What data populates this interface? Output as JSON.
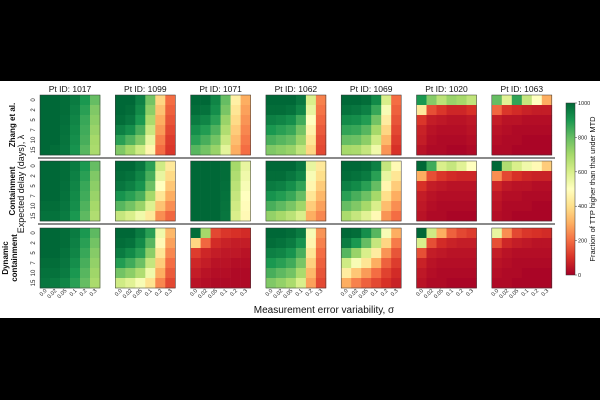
{
  "chart_data": {
    "type": "heatmap",
    "xlabel": "Measurement error variability, σ",
    "ylabel": "Expected delay (days), λ",
    "x_ticks": [
      "0.0",
      "0.02",
      "0.05",
      "0.1",
      "0.2",
      "0.3"
    ],
    "y_ticks": [
      "0",
      "2",
      "5",
      "7",
      "10",
      "15"
    ],
    "colorbar": {
      "label": "Fraction of TTP higher than that under MTD",
      "ticks": [
        "0",
        "200",
        "400",
        "600",
        "800",
        "1000"
      ],
      "range": [
        0,
        1000
      ],
      "stops": [
        "#a50026",
        "#d73027",
        "#f46d43",
        "#fdae61",
        "#fee08b",
        "#ffffbf",
        "#d9ef8b",
        "#a6d96a",
        "#66bd63",
        "#1a9850",
        "#006837"
      ]
    },
    "columns": [
      "Pt ID: 1017",
      "Pt ID: 1099",
      "Pt ID: 1071",
      "Pt ID: 1062",
      "Pt ID: 1069",
      "Pt ID: 1020",
      "Pt ID: 1063"
    ],
    "rows": [
      {
        "label_lines": [
          "Zhang et al."
        ]
      },
      {
        "label_lines": [
          "Containment"
        ]
      },
      {
        "label_lines": [
          "Dynamic",
          "containment"
        ]
      }
    ],
    "grids": [
      [
        [
          [
            1000,
            1000,
            990,
            960,
            900,
            800
          ],
          [
            1000,
            1000,
            990,
            950,
            880,
            760
          ],
          [
            1000,
            1000,
            985,
            940,
            860,
            740
          ],
          [
            1000,
            1000,
            980,
            930,
            850,
            720
          ],
          [
            1000,
            1000,
            975,
            920,
            840,
            700
          ],
          [
            1000,
            990,
            970,
            910,
            820,
            690
          ]
        ],
        [
          [
            1000,
            1000,
            950,
            780,
            380,
            200
          ],
          [
            1000,
            990,
            930,
            740,
            340,
            180
          ],
          [
            990,
            970,
            900,
            690,
            300,
            160
          ],
          [
            950,
            920,
            840,
            630,
            270,
            140
          ],
          [
            880,
            830,
            760,
            560,
            230,
            120
          ],
          [
            760,
            700,
            620,
            470,
            200,
            110
          ]
        ],
        [
          [
            1000,
            1000,
            940,
            800,
            450,
            300
          ],
          [
            990,
            980,
            920,
            770,
            420,
            280
          ],
          [
            960,
            940,
            880,
            720,
            390,
            260
          ],
          [
            920,
            890,
            830,
            680,
            360,
            240
          ],
          [
            880,
            840,
            780,
            630,
            330,
            220
          ],
          [
            820,
            780,
            720,
            570,
            300,
            200
          ]
        ],
        [
          [
            1000,
            1000,
            1000,
            970,
            600,
            230
          ],
          [
            990,
            990,
            980,
            940,
            560,
            210
          ],
          [
            950,
            940,
            920,
            850,
            500,
            190
          ],
          [
            900,
            880,
            860,
            780,
            460,
            170
          ],
          [
            840,
            820,
            800,
            720,
            420,
            150
          ],
          [
            760,
            740,
            720,
            650,
            380,
            140
          ]
        ],
        [
          [
            1000,
            1000,
            990,
            930,
            600,
            200
          ],
          [
            980,
            970,
            950,
            860,
            520,
            180
          ],
          [
            930,
            920,
            890,
            780,
            440,
            160
          ],
          [
            870,
            860,
            820,
            700,
            380,
            140
          ],
          [
            800,
            790,
            740,
            620,
            320,
            120
          ],
          [
            700,
            690,
            640,
            540,
            260,
            100
          ]
        ],
        [
          [
            900,
            750,
            660,
            720,
            700,
            650
          ],
          [
            430,
            150,
            110,
            80,
            80,
            100
          ],
          [
            110,
            60,
            50,
            40,
            40,
            50
          ],
          [
            70,
            40,
            30,
            30,
            30,
            40
          ],
          [
            60,
            30,
            20,
            20,
            20,
            30
          ],
          [
            40,
            20,
            20,
            10,
            10,
            20
          ]
        ],
        [
          [
            800,
            580,
            870,
            640,
            500,
            300
          ],
          [
            190,
            110,
            90,
            70,
            60,
            60
          ],
          [
            60,
            40,
            40,
            30,
            30,
            30
          ],
          [
            40,
            30,
            20,
            20,
            20,
            20
          ],
          [
            30,
            20,
            20,
            10,
            10,
            10
          ],
          [
            20,
            20,
            10,
            10,
            10,
            10
          ]
        ]
      ],
      [
        [
          [
            1000,
            1000,
            990,
            960,
            900,
            800
          ],
          [
            1000,
            1000,
            990,
            950,
            880,
            760
          ],
          [
            1000,
            1000,
            985,
            940,
            860,
            740
          ],
          [
            1000,
            1000,
            980,
            930,
            850,
            720
          ],
          [
            990,
            990,
            970,
            920,
            830,
            700
          ],
          [
            980,
            980,
            960,
            900,
            810,
            680
          ]
        ],
        [
          [
            1000,
            1000,
            970,
            880,
            620,
            430
          ],
          [
            990,
            980,
            940,
            840,
            560,
            390
          ],
          [
            970,
            950,
            910,
            790,
            500,
            350
          ],
          [
            910,
            880,
            840,
            700,
            420,
            300
          ],
          [
            820,
            780,
            720,
            590,
            340,
            250
          ],
          [
            640,
            600,
            540,
            430,
            250,
            190
          ]
        ],
        [
          [
            1000,
            1000,
            1000,
            990,
            700,
            560
          ],
          [
            1000,
            1000,
            1000,
            990,
            680,
            540
          ],
          [
            1000,
            1000,
            1000,
            985,
            660,
            520
          ],
          [
            1000,
            1000,
            1000,
            980,
            640,
            500
          ],
          [
            1000,
            1000,
            1000,
            975,
            620,
            490
          ],
          [
            1000,
            1000,
            1000,
            970,
            600,
            480
          ]
        ],
        [
          [
            1000,
            1000,
            1000,
            970,
            560,
            430
          ],
          [
            990,
            990,
            970,
            940,
            520,
            400
          ],
          [
            960,
            950,
            920,
            870,
            470,
            360
          ],
          [
            910,
            890,
            860,
            800,
            420,
            320
          ],
          [
            840,
            810,
            770,
            710,
            360,
            280
          ],
          [
            730,
            700,
            660,
            600,
            300,
            240
          ]
        ],
        [
          [
            1000,
            1000,
            990,
            950,
            640,
            480
          ],
          [
            990,
            980,
            960,
            880,
            560,
            420
          ],
          [
            950,
            930,
            880,
            800,
            470,
            360
          ],
          [
            880,
            840,
            790,
            700,
            400,
            300
          ],
          [
            800,
            760,
            700,
            600,
            330,
            250
          ],
          [
            690,
            640,
            580,
            480,
            260,
            200
          ]
        ],
        [
          [
            1000,
            850,
            600,
            640,
            580,
            500
          ],
          [
            300,
            150,
            110,
            90,
            80,
            80
          ],
          [
            100,
            60,
            50,
            40,
            40,
            40
          ],
          [
            60,
            40,
            30,
            30,
            30,
            30
          ],
          [
            50,
            30,
            20,
            20,
            20,
            20
          ],
          [
            40,
            20,
            20,
            10,
            10,
            10
          ]
        ],
        [
          [
            1000,
            680,
            600,
            540,
            480,
            360
          ],
          [
            250,
            140,
            100,
            80,
            70,
            70
          ],
          [
            80,
            50,
            40,
            40,
            30,
            30
          ],
          [
            50,
            30,
            30,
            20,
            20,
            20
          ],
          [
            40,
            20,
            20,
            20,
            10,
            10
          ],
          [
            30,
            20,
            10,
            10,
            10,
            10
          ]
        ]
      ],
      [
        [
          [
            1000,
            1000,
            990,
            960,
            900,
            810
          ],
          [
            1000,
            1000,
            990,
            950,
            880,
            780
          ],
          [
            1000,
            1000,
            980,
            940,
            860,
            750
          ],
          [
            990,
            990,
            970,
            920,
            840,
            730
          ],
          [
            980,
            980,
            960,
            900,
            820,
            710
          ],
          [
            970,
            960,
            940,
            880,
            800,
            690
          ]
        ],
        [
          [
            1000,
            1000,
            960,
            880,
            540,
            320
          ],
          [
            990,
            980,
            930,
            820,
            480,
            280
          ],
          [
            960,
            930,
            880,
            740,
            420,
            240
          ],
          [
            890,
            850,
            790,
            640,
            360,
            200
          ],
          [
            780,
            740,
            680,
            540,
            300,
            170
          ],
          [
            620,
            580,
            520,
            410,
            240,
            140
          ]
        ],
        [
          [
            990,
            700,
            140,
            110,
            100,
            90
          ],
          [
            380,
            190,
            90,
            70,
            60,
            60
          ],
          [
            120,
            80,
            60,
            50,
            50,
            40
          ],
          [
            80,
            60,
            40,
            40,
            30,
            30
          ],
          [
            60,
            40,
            30,
            30,
            20,
            20
          ],
          [
            40,
            30,
            20,
            20,
            20,
            20
          ]
        ],
        [
          [
            1000,
            1000,
            990,
            960,
            520,
            260
          ],
          [
            990,
            980,
            960,
            910,
            470,
            230
          ],
          [
            950,
            940,
            910,
            840,
            420,
            200
          ],
          [
            900,
            880,
            850,
            770,
            370,
            180
          ],
          [
            840,
            810,
            780,
            690,
            320,
            160
          ],
          [
            760,
            730,
            690,
            600,
            280,
            140
          ]
        ],
        [
          [
            1000,
            990,
            920,
            820,
            520,
            300
          ],
          [
            960,
            900,
            800,
            640,
            380,
            220
          ],
          [
            820,
            720,
            600,
            440,
            260,
            160
          ],
          [
            620,
            520,
            420,
            300,
            180,
            120
          ],
          [
            440,
            350,
            270,
            200,
            130,
            90
          ],
          [
            300,
            230,
            180,
            140,
            100,
            70
          ]
        ],
        [
          [
            1000,
            620,
            300,
            180,
            140,
            120
          ],
          [
            600,
            150,
            90,
            70,
            60,
            60
          ],
          [
            150,
            60,
            50,
            40,
            40,
            40
          ],
          [
            70,
            40,
            30,
            30,
            30,
            30
          ],
          [
            50,
            30,
            20,
            20,
            20,
            20
          ],
          [
            40,
            20,
            20,
            10,
            10,
            10
          ]
        ],
        [
          [
            560,
            250,
            140,
            110,
            100,
            90
          ],
          [
            150,
            80,
            60,
            50,
            40,
            40
          ],
          [
            60,
            40,
            30,
            30,
            30,
            30
          ],
          [
            40,
            30,
            20,
            20,
            20,
            20
          ],
          [
            30,
            20,
            20,
            10,
            10,
            10
          ],
          [
            20,
            20,
            10,
            10,
            10,
            10
          ]
        ]
      ]
    ]
  }
}
